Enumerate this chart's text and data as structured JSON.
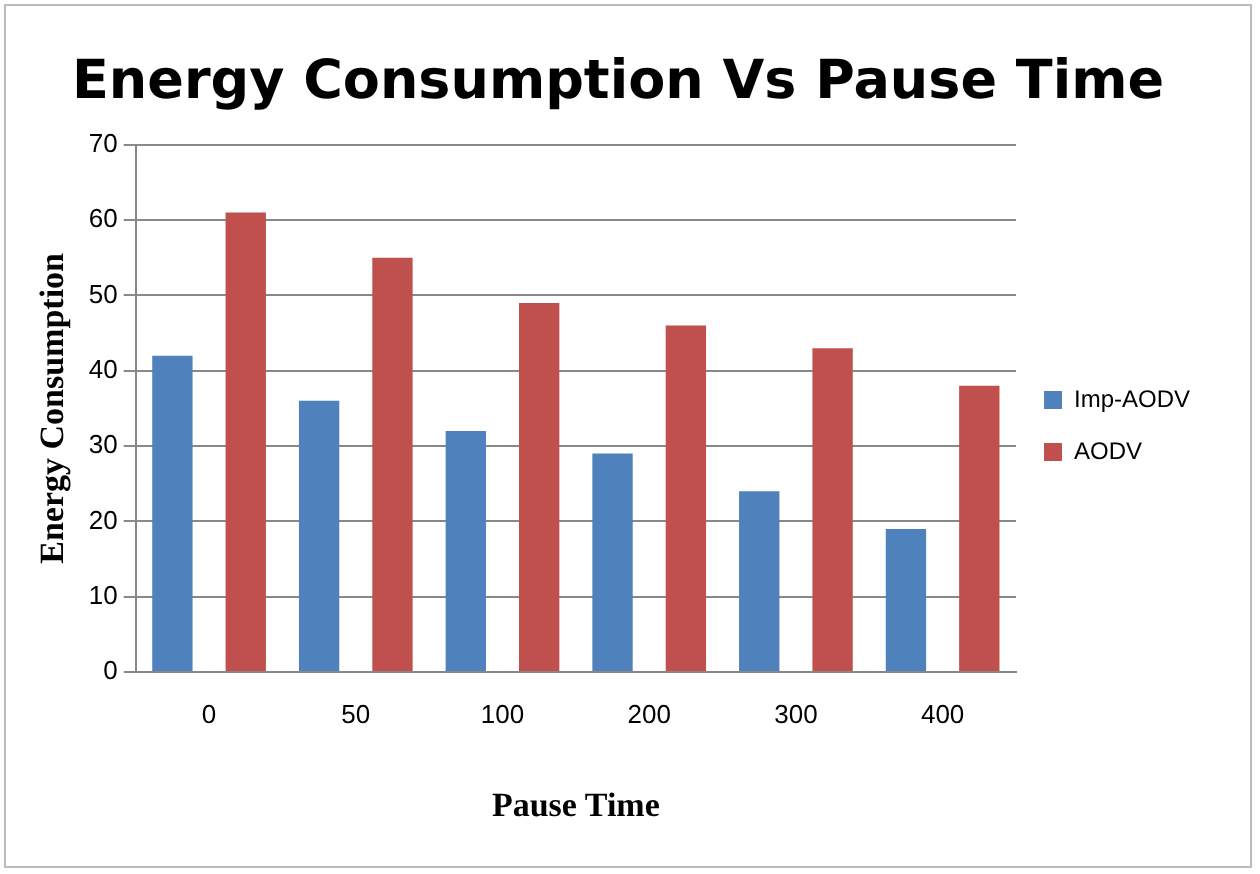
{
  "chart_data": {
    "type": "bar",
    "title": "Energy Consumption Vs Pause Time",
    "xlabel": "Pause Time",
    "ylabel": "Energy Consumption",
    "categories": [
      "0",
      "50",
      "100",
      "200",
      "300",
      "400"
    ],
    "series": [
      {
        "name": "Imp-AODV",
        "color": "#4f81bd",
        "values": [
          42,
          36,
          32,
          29,
          24,
          19
        ]
      },
      {
        "name": "AODV",
        "color": "#c0504d",
        "values": [
          61,
          55,
          49,
          46,
          43,
          38
        ]
      }
    ],
    "ylim": [
      0,
      70
    ],
    "yticks": [
      0,
      10,
      20,
      30,
      40,
      50,
      60,
      70
    ],
    "grid": "y",
    "legend": "right"
  }
}
